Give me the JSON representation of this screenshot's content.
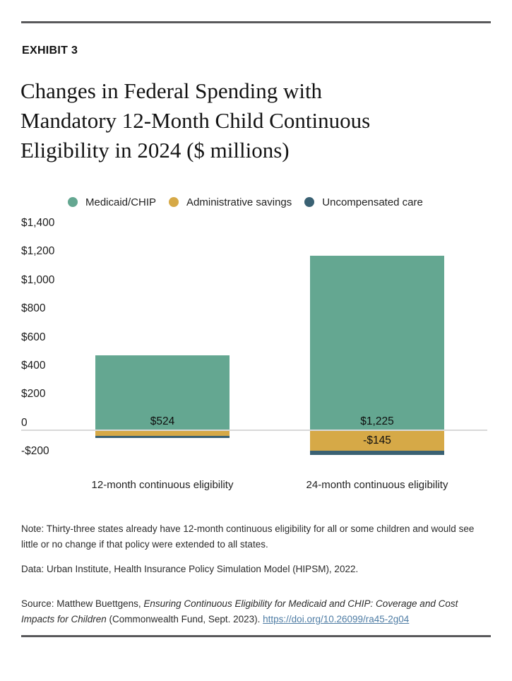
{
  "header": {
    "exhibit_label": "EXHIBIT 3",
    "title_lines": [
      "Changes in Federal Spending with",
      "Mandatory 12-Month Child Continuous",
      "Eligibility in 2024 ($ millions)"
    ]
  },
  "chart_data": {
    "type": "bar",
    "stacked": true,
    "title": "Changes in Federal Spending with Mandatory 12-Month Child Continuous Eligibility in 2024 ($ millions)",
    "categories": [
      "12-month continuous eligibility",
      "24-month continuous eligibility"
    ],
    "series": [
      {
        "name": "Medicaid/CHIP",
        "color": "#64A791",
        "values": [
          524,
          1225
        ]
      },
      {
        "name": "Administrative savings",
        "color": "#D6A947",
        "values": [
          -40,
          -145
        ]
      },
      {
        "name": "Uncompensated care",
        "color": "#3A6173",
        "values": [
          -15,
          -30
        ]
      }
    ],
    "data_labels": [
      {
        "text": "$524",
        "category_index": 0,
        "series_index": 0
      },
      {
        "text": "$1,225",
        "category_index": 1,
        "series_index": 0
      },
      {
        "text": "-$145",
        "category_index": 1,
        "series_index": 1
      }
    ],
    "y_axis": {
      "tick_labels": [
        "$1,400",
        "$1,200",
        "$1,000",
        "$800",
        "$600",
        "$400",
        "$200",
        "0",
        "-$200"
      ],
      "tick_values": [
        1400,
        1200,
        1000,
        800,
        600,
        400,
        200,
        0,
        -200
      ],
      "ylim": [
        -260,
        1450
      ],
      "grid": "zero baseline only"
    },
    "legend_position": "top"
  },
  "footer": {
    "note": "Note: Thirty-three states already have 12-month continuous eligibility for all or some children and would see little or no change if that policy were extended to all states.",
    "data_line": "Data: Urban Institute, Health Insurance Policy Simulation Model (HIPSM), 2022.",
    "source": {
      "prefix": "Source: Matthew Buettgens, ",
      "publication_title": "Ensuring Continuous Eligibility for Medicaid and CHIP: Coverage and Cost Impacts for Children",
      "suffix": " (Commonwealth Fund, Sept. 2023). ",
      "link_text": "https://doi.org/10.26099/ra45-2g04"
    }
  },
  "colors": {
    "medicaid_chip_green": "#64A791",
    "administrative_savings_gold": "#D6A947",
    "uncompensated_care_teal": "#3A6173",
    "link_blue": "#4E7CA4",
    "rule_gray": "#59595B"
  }
}
